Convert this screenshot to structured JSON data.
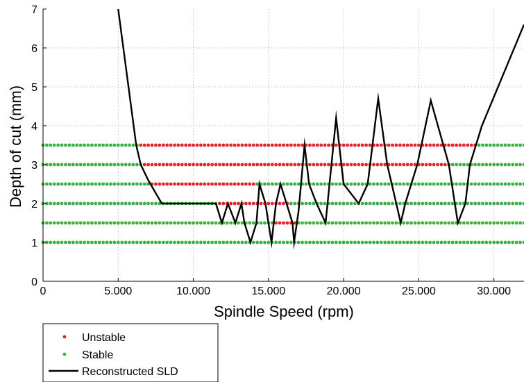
{
  "chart_data": {
    "type": "scatter",
    "xlabel": "Spindle Speed (rpm)",
    "ylabel": "Depth of cut (mm)",
    "xlim": [
      0,
      32000
    ],
    "ylim": [
      0,
      7
    ],
    "grid": true,
    "legend_placement": "bottom-left (below axes)",
    "x_ticks": [
      {
        "value": 0,
        "label": "0"
      },
      {
        "value": 5000,
        "label": "5.000"
      },
      {
        "value": 10000,
        "label": "10.000"
      },
      {
        "value": 15000,
        "label": "15.000"
      },
      {
        "value": 20000,
        "label": "20.000"
      },
      {
        "value": 25000,
        "label": "25.000"
      },
      {
        "value": 30000,
        "label": "30.000"
      }
    ],
    "y_ticks": [
      {
        "value": 0,
        "label": "0"
      },
      {
        "value": 1,
        "label": "1"
      },
      {
        "value": 2,
        "label": "2"
      },
      {
        "value": 3,
        "label": "3"
      },
      {
        "value": 4,
        "label": "4"
      },
      {
        "value": 5,
        "label": "5"
      },
      {
        "value": 6,
        "label": "6"
      },
      {
        "value": 7,
        "label": "7"
      }
    ],
    "colors": {
      "unstable": "#e0252b",
      "stable": "#3cb043",
      "sld": "#000000",
      "grid": "#bdbdbd"
    },
    "series": [
      {
        "name": "Unstable",
        "kind": "markers",
        "segments": [
          {
            "depth": 3.5,
            "from": 6300,
            "to": 28800
          },
          {
            "depth": 3.0,
            "from": 6600,
            "to": 27100
          },
          {
            "depth": 2.5,
            "from": 7000,
            "to": 14200
          },
          {
            "depth": 2.0,
            "from": 11600,
            "to": 16400
          },
          {
            "depth": 1.5,
            "from": 15300,
            "to": 16900
          }
        ]
      },
      {
        "name": "Stable",
        "kind": "markers",
        "segments": [
          {
            "depth": 3.5,
            "from": 0,
            "to": 6300
          },
          {
            "depth": 3.5,
            "from": 28800,
            "to": 32000
          },
          {
            "depth": 3.0,
            "from": 0,
            "to": 6600
          },
          {
            "depth": 3.0,
            "from": 27100,
            "to": 32000
          },
          {
            "depth": 2.5,
            "from": 0,
            "to": 7000
          },
          {
            "depth": 2.5,
            "from": 14200,
            "to": 32000
          },
          {
            "depth": 2.0,
            "from": 0,
            "to": 11600
          },
          {
            "depth": 2.0,
            "from": 16400,
            "to": 32000
          },
          {
            "depth": 1.5,
            "from": 0,
            "to": 15300
          },
          {
            "depth": 1.5,
            "from": 16900,
            "to": 32000
          },
          {
            "depth": 1.0,
            "from": 0,
            "to": 32000
          }
        ]
      },
      {
        "name": "Reconstructed SLD",
        "kind": "line",
        "points": [
          [
            5000,
            7.0
          ],
          [
            6200,
            3.5
          ],
          [
            6500,
            3.0
          ],
          [
            7000,
            2.6
          ],
          [
            7900,
            2.0
          ],
          [
            11500,
            2.0
          ],
          [
            11900,
            1.5
          ],
          [
            12300,
            2.0
          ],
          [
            12800,
            1.5
          ],
          [
            13200,
            2.0
          ],
          [
            13400,
            1.5
          ],
          [
            13800,
            1.0
          ],
          [
            14200,
            1.5
          ],
          [
            14400,
            2.5
          ],
          [
            14800,
            2.0
          ],
          [
            15200,
            1.0
          ],
          [
            15500,
            2.0
          ],
          [
            15800,
            2.5
          ],
          [
            16200,
            2.0
          ],
          [
            16600,
            1.5
          ],
          [
            16700,
            1.0
          ],
          [
            17000,
            1.8
          ],
          [
            17400,
            3.5
          ],
          [
            17700,
            2.5
          ],
          [
            18200,
            2.0
          ],
          [
            18800,
            1.5
          ],
          [
            19500,
            4.2
          ],
          [
            20000,
            2.5
          ],
          [
            21000,
            2.0
          ],
          [
            21600,
            2.5
          ],
          [
            22300,
            4.7
          ],
          [
            22900,
            3.0
          ],
          [
            23800,
            1.5
          ],
          [
            24100,
            2.0
          ],
          [
            24900,
            3.0
          ],
          [
            25800,
            4.65
          ],
          [
            27000,
            3.0
          ],
          [
            27600,
            1.5
          ],
          [
            28100,
            2.0
          ],
          [
            28400,
            3.0
          ],
          [
            29200,
            4.0
          ],
          [
            32000,
            6.6
          ]
        ]
      }
    ]
  }
}
